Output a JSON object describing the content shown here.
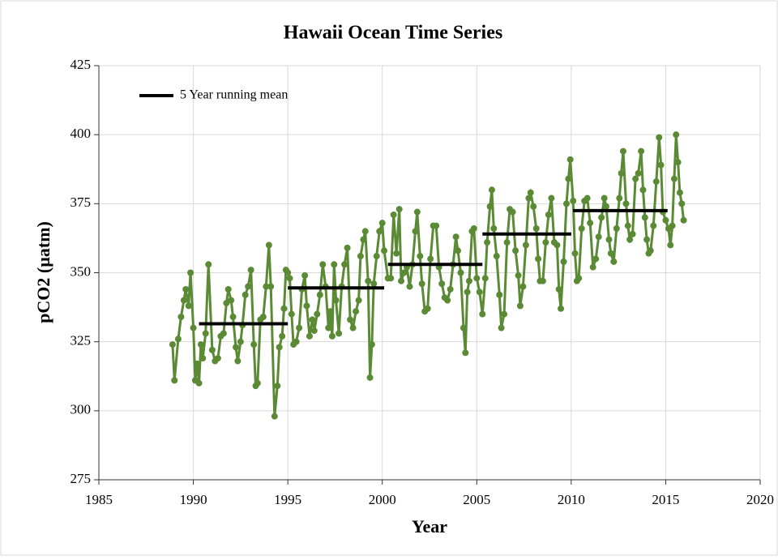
{
  "chart_data": {
    "type": "line",
    "title": "Hawaii Ocean Time Series",
    "x_label": "Year",
    "y_label": "pCO2 (µatm)",
    "xlim": [
      1985,
      2020
    ],
    "xticks": [
      1985,
      1990,
      1995,
      2000,
      2005,
      2010,
      2015,
      2020
    ],
    "ylim": [
      275,
      425
    ],
    "yticks": [
      275,
      300,
      325,
      350,
      375,
      400,
      425
    ],
    "grid": true,
    "color": "#5b8a35",
    "x": [
      1988.9,
      1989.0,
      1989.2,
      1989.35,
      1989.5,
      1989.6,
      1989.75,
      1989.85,
      1990.0,
      1990.1,
      1990.2,
      1990.3,
      1990.4,
      1990.5,
      1990.65,
      1990.8,
      1991.0,
      1991.15,
      1991.3,
      1991.45,
      1991.6,
      1991.75,
      1991.85,
      1992.0,
      1992.1,
      1992.25,
      1992.35,
      1992.5,
      1992.6,
      1992.75,
      1992.9,
      1993.05,
      1993.2,
      1993.3,
      1993.4,
      1993.55,
      1993.7,
      1993.85,
      1994.0,
      1994.1,
      1994.3,
      1994.45,
      1994.55,
      1994.7,
      1994.8,
      1994.9,
      1995.0,
      1995.1,
      1995.2,
      1995.3,
      1995.45,
      1995.6,
      1995.75,
      1995.9,
      1996.0,
      1996.15,
      1996.3,
      1996.4,
      1996.55,
      1996.7,
      1996.85,
      1997.0,
      1997.15,
      1997.25,
      1997.35,
      1997.45,
      1997.55,
      1997.7,
      1997.85,
      1998.0,
      1998.15,
      1998.3,
      1998.45,
      1998.6,
      1998.75,
      1998.85,
      1999.0,
      1999.1,
      1999.25,
      1999.35,
      1999.45,
      1999.55,
      1999.7,
      1999.85,
      2000.0,
      2000.1,
      2000.3,
      2000.45,
      2000.6,
      2000.75,
      2000.9,
      2001.0,
      2001.15,
      2001.3,
      2001.45,
      2001.6,
      2001.75,
      2001.85,
      2002.0,
      2002.1,
      2002.25,
      2002.4,
      2002.55,
      2002.7,
      2002.85,
      2003.0,
      2003.15,
      2003.3,
      2003.45,
      2003.6,
      2003.75,
      2003.9,
      2004.0,
      2004.15,
      2004.3,
      2004.4,
      2004.5,
      2004.6,
      2004.75,
      2004.85,
      2005.0,
      2005.15,
      2005.3,
      2005.45,
      2005.55,
      2005.7,
      2005.8,
      2005.9,
      2006.05,
      2006.2,
      2006.3,
      2006.45,
      2006.6,
      2006.75,
      2006.9,
      2007.05,
      2007.2,
      2007.3,
      2007.45,
      2007.6,
      2007.75,
      2007.85,
      2008.0,
      2008.15,
      2008.25,
      2008.35,
      2008.5,
      2008.65,
      2008.8,
      2008.95,
      2009.1,
      2009.25,
      2009.35,
      2009.45,
      2009.6,
      2009.75,
      2009.85,
      2009.95,
      2010.1,
      2010.2,
      2010.3,
      2010.4,
      2010.55,
      2010.7,
      2010.85,
      2011.0,
      2011.15,
      2011.3,
      2011.45,
      2011.6,
      2011.75,
      2011.85,
      2012.0,
      2012.1,
      2012.25,
      2012.4,
      2012.55,
      2012.65,
      2012.75,
      2012.9,
      2013.0,
      2013.1,
      2013.25,
      2013.4,
      2013.55,
      2013.7,
      2013.8,
      2013.9,
      2014.0,
      2014.1,
      2014.2,
      2014.35,
      2014.5,
      2014.65,
      2014.75,
      2014.85,
      2015.0,
      2015.15,
      2015.25,
      2015.35,
      2015.45,
      2015.55,
      2015.65,
      2015.75,
      2015.85,
      2015.95
    ],
    "values": [
      324,
      311,
      326,
      334,
      340,
      344,
      338,
      350,
      330,
      311,
      317,
      310,
      324,
      319,
      328,
      353,
      322,
      318,
      319,
      327,
      328,
      339,
      344,
      340,
      334,
      323,
      318,
      325,
      331,
      342,
      345,
      351,
      324,
      309,
      310,
      333,
      334,
      345,
      360,
      345,
      298,
      309,
      323,
      327,
      337,
      351,
      350,
      348,
      335,
      324,
      325,
      330,
      344,
      349,
      338,
      327,
      333,
      329,
      335,
      342,
      353,
      345,
      330,
      336,
      327,
      353,
      340,
      328,
      345,
      353,
      359,
      333,
      330,
      336,
      340,
      356,
      362,
      365,
      347,
      312,
      324,
      346,
      356,
      365,
      368,
      358,
      348,
      348,
      371,
      357,
      373,
      347,
      350,
      352,
      345,
      353,
      365,
      372,
      356,
      346,
      336,
      337,
      355,
      367,
      367,
      352,
      346,
      341,
      340,
      344,
      353,
      363,
      358,
      350,
      330,
      321,
      343,
      347,
      365,
      366,
      348,
      343,
      335,
      348,
      361,
      374,
      380,
      366,
      356,
      342,
      330,
      335,
      361,
      373,
      372,
      358,
      349,
      338,
      345,
      360,
      377,
      379,
      374,
      366,
      355,
      347,
      347,
      361,
      371,
      377,
      361,
      360,
      344,
      337,
      354,
      375,
      384,
      391,
      376,
      357,
      347,
      348,
      366,
      376,
      377,
      368,
      352,
      355,
      363,
      370,
      377,
      374,
      362,
      357,
      354,
      366,
      377,
      386,
      394,
      375,
      367,
      362,
      364,
      384,
      386,
      394,
      380,
      370,
      362,
      357,
      358,
      367,
      383,
      399,
      389,
      372,
      369,
      366,
      360,
      367,
      384,
      400,
      390,
      379,
      375,
      369
    ],
    "running_mean": {
      "name": "5 Year running mean",
      "color": "#000000",
      "segments": [
        {
          "x": [
            1990.3,
            1995.0
          ],
          "value": 331.5
        },
        {
          "x": [
            1995.0,
            2000.1
          ],
          "value": 344.5
        },
        {
          "x": [
            2000.3,
            2005.3
          ],
          "value": 353
        },
        {
          "x": [
            2005.3,
            2010.0
          ],
          "value": 364
        },
        {
          "x": [
            2010.1,
            2015.1
          ],
          "value": 372.5
        }
      ]
    }
  }
}
